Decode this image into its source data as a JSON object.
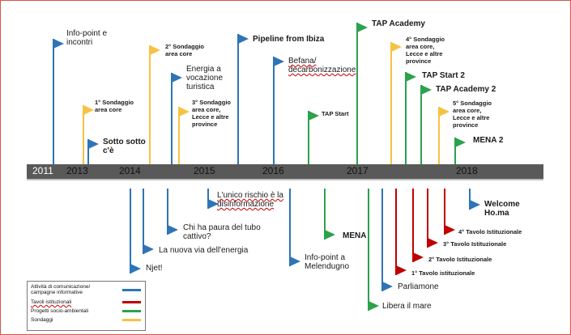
{
  "colors": {
    "blue": "#2e75b6",
    "red": "#c00000",
    "green": "#2ca24d",
    "yellow": "#f7c244",
    "axis": "#595959",
    "axis_edge": "#bfbfbf"
  },
  "years": [
    {
      "label": "2011",
      "dark": false
    },
    {
      "label": "2013",
      "dark": true
    },
    {
      "label": "2014",
      "dark": true
    },
    {
      "label": "2015",
      "dark": true
    },
    {
      "label": "2016",
      "dark": true
    },
    {
      "label": "2017",
      "dark": true
    },
    {
      "label": "2018",
      "dark": true
    }
  ],
  "events_above": [
    {
      "text": "Info-point e\nincontri",
      "color": "blue"
    },
    {
      "text": "1° Sondaggio\narea core",
      "color": "yellow"
    },
    {
      "text": "Sotto sotto\nc'è",
      "color": "blue"
    },
    {
      "text": "2° Sondaggio\narea core",
      "color": "yellow"
    },
    {
      "text": "Energia a\nvocazione\nturistica",
      "color": "blue"
    },
    {
      "text": "3° Sondaggio\narea core,\nLecce e altre\nprovince",
      "color": "yellow"
    },
    {
      "text": "Pipeline from Ibiza",
      "color": "blue"
    },
    {
      "text": "Befana/\ndecarbonizzazione",
      "color": "blue"
    },
    {
      "text": "TAP Start",
      "color": "green"
    },
    {
      "text": "TAP Academy",
      "color": "green"
    },
    {
      "text": "4° Sondaggio\narea core,\nLecce e altre\nprovince",
      "color": "yellow"
    },
    {
      "text": "TAP Start 2",
      "color": "green"
    },
    {
      "text": "TAP Academy 2",
      "color": "green"
    },
    {
      "text": "5° Sondaggio\narea core,\nLecce e altre\nprovince",
      "color": "yellow"
    },
    {
      "text": "MENA 2",
      "color": "green"
    }
  ],
  "events_below": [
    {
      "text": "Njet!",
      "color": "blue"
    },
    {
      "text": "La nuova via dell'energia",
      "color": "blue"
    },
    {
      "text": "Chi ha paura del tubo\ncattivo?",
      "color": "blue"
    },
    {
      "text": "L'unico rischio è la\ndisinformazione",
      "color": "blue"
    },
    {
      "text": "Info-point a\nMelendugno",
      "color": "blue"
    },
    {
      "text": "MENA",
      "color": "green"
    },
    {
      "text": "Libera il mare",
      "color": "green"
    },
    {
      "text": "Parliamone",
      "color": "blue"
    },
    {
      "text": "1° Tavolo istituzionale",
      "color": "red"
    },
    {
      "text": "2° Tavolo Istituzionale",
      "color": "red"
    },
    {
      "text": "3° Tavolo Istituzionale",
      "color": "red"
    },
    {
      "text": "4° Tavolo Istituzionale",
      "color": "red"
    },
    {
      "text": "Welcome\nHo.ma",
      "color": "blue"
    }
  ],
  "legend": [
    {
      "label": "Attività di comunicazione/\ncampagne informative",
      "color": "blue"
    },
    {
      "label": "Tavoli istituzionali",
      "color": "red"
    },
    {
      "label": "Progetti socio-ambientali",
      "color": "green"
    },
    {
      "label": "Sondaggi",
      "color": "yellow"
    }
  ]
}
